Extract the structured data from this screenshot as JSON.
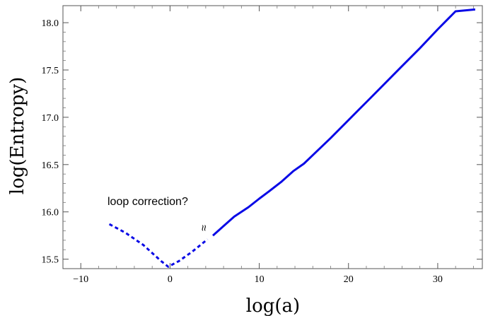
{
  "chart_data": {
    "type": "line",
    "title": "",
    "xlabel": "log(a)",
    "ylabel": "log(Entropy)",
    "xlim": [
      -12,
      35
    ],
    "ylim": [
      15.4,
      18.18
    ],
    "x_ticks": [
      -10,
      0,
      10,
      20,
      30
    ],
    "y_ticks": [
      15.5,
      16.0,
      16.5,
      17.0,
      17.5,
      18.0
    ],
    "x_tick_labels": [
      "−10",
      "0",
      "10",
      "20",
      "30"
    ],
    "y_tick_labels": [
      "15.5",
      "16.0",
      "16.5",
      "17.0",
      "17.5",
      "18.0"
    ],
    "grid": false,
    "series": [
      {
        "style": "dashed",
        "color": "#0a0ae6",
        "x": [
          -6.8,
          -5,
          -3,
          -1,
          -0.2,
          1,
          2.5,
          4.2
        ],
        "y": [
          15.87,
          15.78,
          15.65,
          15.48,
          15.42,
          15.48,
          15.58,
          15.71
        ]
      },
      {
        "style": "solid",
        "color": "#0a0ae6",
        "x": [
          4.8,
          6,
          7.2,
          8.8,
          10,
          11,
          12.5,
          13.8,
          15,
          16,
          18,
          20,
          22,
          24,
          26,
          28,
          30,
          32,
          34.2
        ],
        "y": [
          15.75,
          15.85,
          15.95,
          16.05,
          16.14,
          16.21,
          16.32,
          16.43,
          16.51,
          16.6,
          16.78,
          16.97,
          17.16,
          17.35,
          17.54,
          17.73,
          17.93,
          18.12,
          18.14
        ]
      }
    ],
    "annotations": [
      {
        "text": "loop correction?"
      }
    ],
    "break_marker": {
      "text": "≈"
    }
  }
}
